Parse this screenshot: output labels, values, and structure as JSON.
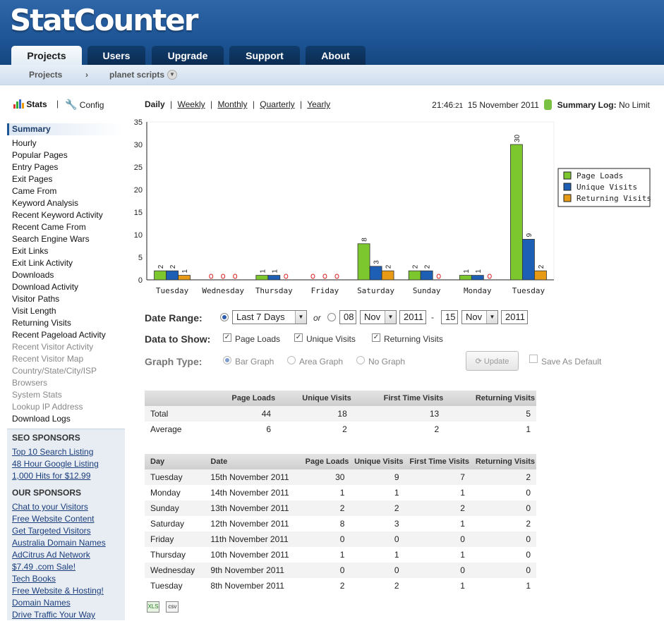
{
  "app": {
    "logo": "StatCounter"
  },
  "tabs": [
    {
      "label": "Projects"
    },
    {
      "label": "Users"
    },
    {
      "label": "Upgrade"
    },
    {
      "label": "Support"
    },
    {
      "label": "About"
    }
  ],
  "breadcrumb": {
    "root": "Projects",
    "separator": "›",
    "project": "planet scripts"
  },
  "sidebar": {
    "stats_label": "Stats",
    "config_label": "Config",
    "items": [
      {
        "label": "Summary",
        "state": "selected"
      },
      {
        "label": "Hourly"
      },
      {
        "label": "Popular Pages"
      },
      {
        "label": "Entry Pages"
      },
      {
        "label": "Exit Pages"
      },
      {
        "label": "Came From"
      },
      {
        "label": "Keyword Analysis"
      },
      {
        "label": "Recent Keyword Activity"
      },
      {
        "label": "Recent Came From"
      },
      {
        "label": "Search Engine Wars"
      },
      {
        "label": "Exit Links"
      },
      {
        "label": "Exit Link Activity"
      },
      {
        "label": "Downloads"
      },
      {
        "label": "Download Activity"
      },
      {
        "label": "Visitor Paths"
      },
      {
        "label": "Visit Length"
      },
      {
        "label": "Returning Visits"
      },
      {
        "label": "Recent Pageload Activity"
      },
      {
        "label": "Recent Visitor Activity",
        "state": "disabled"
      },
      {
        "label": "Recent Visitor Map",
        "state": "disabled"
      },
      {
        "label": "Country/State/City/ISP",
        "state": "disabled"
      },
      {
        "label": "Browsers",
        "state": "disabled"
      },
      {
        "label": "System Stats",
        "state": "disabled"
      },
      {
        "label": "Lookup IP Address",
        "state": "disabled"
      },
      {
        "label": "Download Logs"
      }
    ],
    "seo_heading": "SEO SPONSORS",
    "seo_links": [
      "Top 10 Search Listing",
      "48 Hour Google Listing",
      "1,000 Hits for $12.99"
    ],
    "our_heading": "OUR SPONSORS",
    "our_links": [
      "Chat to your Visitors",
      "Free Website Content",
      "Get Targeted Visitors",
      "Australia Domain Names",
      "AdCitrus Ad Network",
      "$7.49 .com Sale!",
      "Tech Books",
      "Free Website & Hosting!",
      "Domain Names",
      "Drive Traffic Your Way"
    ]
  },
  "periods": {
    "active": "Daily",
    "links": [
      "Weekly",
      "Monthly",
      "Quarterly",
      "Yearly"
    ]
  },
  "clock": {
    "time": "21:46",
    "seconds": ":21",
    "date": "15 November 2011",
    "log_label": "Summary Log:",
    "log_value": "No Limit"
  },
  "form": {
    "date_range_label": "Date Range:",
    "range_option": "Last 7 Days",
    "or": "or",
    "from_day": "08",
    "from_month": "Nov",
    "from_year": "2011",
    "dash": "-",
    "to_day": "15",
    "to_month": "Nov",
    "to_year": "2011",
    "data_label": "Data to Show:",
    "chk_page_loads": "Page Loads",
    "chk_unique": "Unique Visits",
    "chk_returning": "Returning Visits",
    "graph_label": "Graph Type:",
    "bar": "Bar Graph",
    "area": "Area Graph",
    "none": "No Graph",
    "update": "Update",
    "save_default": "Save As Default"
  },
  "summary_table": {
    "headers": [
      "",
      "Page Loads",
      "Unique Visits",
      "First Time Visits",
      "Returning Visits"
    ],
    "rows": [
      [
        "Total",
        "44",
        "18",
        "13",
        "5"
      ],
      [
        "Average",
        "6",
        "2",
        "2",
        "1"
      ]
    ]
  },
  "daily_table": {
    "headers": [
      "Day",
      "Date",
      "Page Loads",
      "Unique Visits",
      "First Time Visits",
      "Returning Visits"
    ],
    "rows": [
      [
        "Tuesday",
        "15th November 2011",
        "30",
        "9",
        "7",
        "2"
      ],
      [
        "Monday",
        "14th November 2011",
        "1",
        "1",
        "1",
        "0"
      ],
      [
        "Sunday",
        "13th November 2011",
        "2",
        "2",
        "2",
        "0"
      ],
      [
        "Saturday",
        "12th November 2011",
        "8",
        "3",
        "1",
        "2"
      ],
      [
        "Friday",
        "11th November 2011",
        "0",
        "0",
        "0",
        "0"
      ],
      [
        "Thursday",
        "10th November 2011",
        "1",
        "1",
        "1",
        "0"
      ],
      [
        "Wednesday",
        "9th November 2011",
        "0",
        "0",
        "0",
        "0"
      ],
      [
        "Tuesday",
        "8th November 2011",
        "2",
        "2",
        "1",
        "1"
      ]
    ]
  },
  "export": {
    "excel": "XLS",
    "csv": "csv"
  },
  "colors": {
    "page_loads": "#7dc72e",
    "unique": "#1c5fb4",
    "returning": "#e79a16"
  },
  "chart_data": {
    "type": "bar",
    "categories": [
      "Tuesday",
      "Wednesday",
      "Thursday",
      "Friday",
      "Saturday",
      "Sunday",
      "Monday",
      "Tuesday"
    ],
    "series": [
      {
        "name": "Page Loads",
        "values": [
          2,
          0,
          1,
          0,
          8,
          2,
          1,
          30
        ]
      },
      {
        "name": "Unique Visits",
        "values": [
          2,
          0,
          1,
          0,
          3,
          2,
          1,
          9
        ]
      },
      {
        "name": "Returning Visits",
        "values": [
          1,
          0,
          0,
          0,
          2,
          0,
          0,
          2
        ]
      }
    ],
    "ylim": [
      0,
      35
    ],
    "yticks": [
      0,
      5,
      10,
      15,
      20,
      25,
      30,
      35
    ],
    "legend": "right",
    "data_labels": true
  }
}
